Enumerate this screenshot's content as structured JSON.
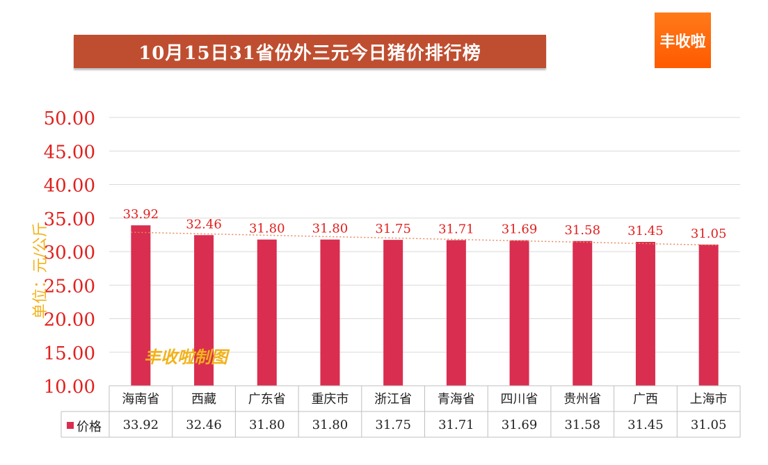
{
  "title": "10月15日31省份外三元今日猪价排行榜",
  "logo_text": "丰收啦",
  "watermark": "丰收啦制图",
  "colors": {
    "title_bg": "#bf4e30",
    "bar": "#d92e4f",
    "axis_label": "#e0201e",
    "value_label": "#e0201e",
    "trendline": "#e8875a",
    "unit": "#f2b21a",
    "logo_bg": "#ff6a00"
  },
  "chart_data": {
    "type": "bar",
    "categories": [
      "海南省",
      "西藏",
      "广东省",
      "重庆市",
      "浙江省",
      "青海省",
      "四川省",
      "贵州省",
      "广西",
      "上海市"
    ],
    "series": [
      {
        "name": "价格",
        "values": [
          33.92,
          32.46,
          31.8,
          31.8,
          31.75,
          31.71,
          31.69,
          31.58,
          31.45,
          31.05
        ]
      }
    ],
    "value_labels": [
      "33.92",
      "32.46",
      "31.80",
      "31.80",
      "31.75",
      "31.71",
      "31.69",
      "31.58",
      "31.45",
      "31.05"
    ],
    "ylabel": "单位：元/公斤",
    "ylim": [
      10,
      50
    ],
    "y_ticks": [
      "10.00",
      "15.00",
      "20.00",
      "25.00",
      "30.00",
      "35.00",
      "40.00",
      "45.00",
      "50.00"
    ],
    "grid": true,
    "trendline": "linear, dotted",
    "data_table": true,
    "legend": "data-table"
  }
}
